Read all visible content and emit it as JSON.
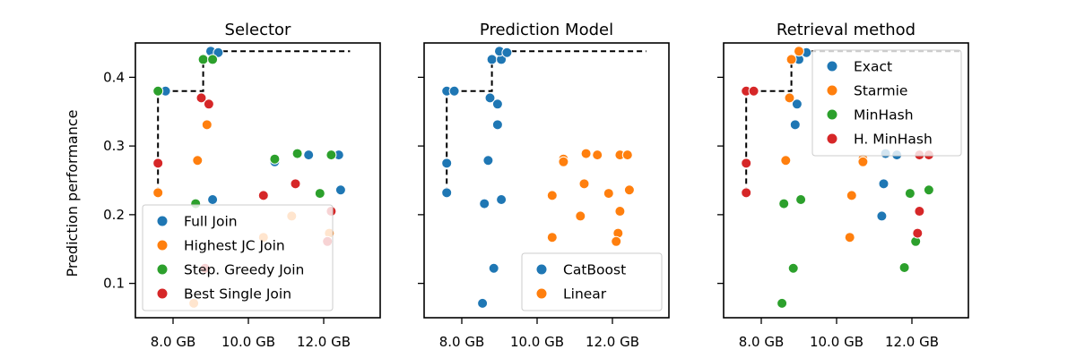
{
  "figure": {
    "ylabel": "Prediction performance",
    "xtick_labels": [
      "8.0 GB",
      "10.0 GB",
      "12.0 GB"
    ],
    "ytick_labels": [
      "0.1",
      "0.2",
      "0.3",
      "0.4"
    ]
  },
  "colors": {
    "Full Join": "#1f77b4",
    "Highest JC Join": "#ff7f0e",
    "Step. Greedy Join": "#2ca02c",
    "Best Single Join": "#d62728",
    "CatBoost": "#1f77b4",
    "Linear": "#ff7f0e",
    "Exact": "#1f77b4",
    "Starmie": "#ff7f0e",
    "MinHash": "#2ca02c",
    "H. MinHash": "#d62728",
    "pareto": "#000000"
  },
  "chart_data": [
    {
      "type": "scatter",
      "title": "Selector",
      "xlabel": "",
      "ylabel": "Prediction performance",
      "x_unit": "GB",
      "xlim": [
        7.0,
        13.5
      ],
      "ylim": [
        0.05,
        0.45
      ],
      "xticks": [
        8,
        10,
        12
      ],
      "yticks": [
        0.1,
        0.2,
        0.3,
        0.4
      ],
      "legend_loc": "lower-left",
      "grid": false,
      "series": [
        {
          "name": "Full Join",
          "points": [
            [
              7.8,
              0.38
            ],
            [
              9.0,
              0.438
            ],
            [
              9.2,
              0.436
            ],
            [
              10.7,
              0.277
            ],
            [
              9.05,
              0.222
            ],
            [
              11.6,
              0.287
            ],
            [
              12.4,
              0.287
            ],
            [
              12.45,
              0.236
            ]
          ]
        },
        {
          "name": "Highest JC Join",
          "points": [
            [
              7.6,
              0.232
            ],
            [
              8.65,
              0.279
            ],
            [
              8.9,
              0.331
            ],
            [
              10.4,
              0.167
            ],
            [
              11.15,
              0.198
            ],
            [
              12.15,
              0.173
            ],
            [
              8.55,
              0.071
            ]
          ]
        },
        {
          "name": "Step. Greedy Join",
          "points": [
            [
              7.6,
              0.38
            ],
            [
              8.8,
              0.426
            ],
            [
              9.05,
              0.426
            ],
            [
              11.3,
              0.289
            ],
            [
              10.7,
              0.281
            ],
            [
              12.2,
              0.287
            ],
            [
              11.9,
              0.231
            ],
            [
              8.6,
              0.216
            ]
          ]
        },
        {
          "name": "Best Single Join",
          "points": [
            [
              7.6,
              0.275
            ],
            [
              8.75,
              0.37
            ],
            [
              8.95,
              0.361
            ],
            [
              10.4,
              0.228
            ],
            [
              11.25,
              0.245
            ],
            [
              12.2,
              0.205
            ],
            [
              12.1,
              0.161
            ],
            [
              8.85,
              0.122
            ]
          ]
        }
      ],
      "pareto_front": [
        [
          7.6,
          0.232
        ],
        [
          7.6,
          0.38
        ],
        [
          8.8,
          0.38
        ],
        [
          8.8,
          0.426
        ],
        [
          9.0,
          0.426
        ],
        [
          9.0,
          0.438
        ],
        [
          12.7,
          0.438
        ]
      ]
    },
    {
      "type": "scatter",
      "title": "Prediction Model",
      "xlabel": "",
      "x_unit": "GB",
      "xlim": [
        7.0,
        13.5
      ],
      "ylim": [
        0.05,
        0.45
      ],
      "xticks": [
        8,
        10,
        12
      ],
      "yticks": [
        0.1,
        0.2,
        0.3,
        0.4
      ],
      "legend_loc": "lower-right",
      "grid": false,
      "series": [
        {
          "name": "CatBoost",
          "points": [
            [
              7.6,
              0.38
            ],
            [
              7.8,
              0.38
            ],
            [
              7.6,
              0.232
            ],
            [
              7.6,
              0.275
            ],
            [
              8.8,
              0.426
            ],
            [
              9.05,
              0.426
            ],
            [
              9.0,
              0.438
            ],
            [
              9.2,
              0.436
            ],
            [
              8.75,
              0.37
            ],
            [
              8.95,
              0.361
            ],
            [
              8.95,
              0.331
            ],
            [
              8.7,
              0.279
            ],
            [
              8.6,
              0.216
            ],
            [
              9.05,
              0.222
            ],
            [
              8.85,
              0.122
            ],
            [
              8.55,
              0.071
            ]
          ]
        },
        {
          "name": "Linear",
          "points": [
            [
              10.7,
              0.281
            ],
            [
              10.7,
              0.277
            ],
            [
              11.3,
              0.289
            ],
            [
              11.6,
              0.287
            ],
            [
              12.2,
              0.287
            ],
            [
              12.4,
              0.287
            ],
            [
              11.25,
              0.245
            ],
            [
              10.4,
              0.228
            ],
            [
              11.9,
              0.231
            ],
            [
              12.45,
              0.236
            ],
            [
              11.15,
              0.198
            ],
            [
              12.2,
              0.205
            ],
            [
              10.4,
              0.167
            ],
            [
              12.15,
              0.173
            ],
            [
              12.1,
              0.161
            ]
          ]
        }
      ],
      "pareto_front": [
        [
          7.6,
          0.232
        ],
        [
          7.6,
          0.38
        ],
        [
          8.8,
          0.38
        ],
        [
          8.8,
          0.426
        ],
        [
          9.0,
          0.426
        ],
        [
          9.0,
          0.438
        ],
        [
          12.9,
          0.438
        ]
      ]
    },
    {
      "type": "scatter",
      "title": "Retrieval method",
      "xlabel": "",
      "x_unit": "GB",
      "xlim": [
        7.0,
        13.5
      ],
      "ylim": [
        0.05,
        0.45
      ],
      "xticks": [
        8,
        10,
        12
      ],
      "yticks": [
        0.1,
        0.2,
        0.3,
        0.4
      ],
      "legend_loc": "upper-right",
      "grid": false,
      "series": [
        {
          "name": "Exact",
          "points": [
            [
              9.0,
              0.426
            ],
            [
              9.2,
              0.436
            ],
            [
              8.95,
              0.361
            ],
            [
              8.9,
              0.331
            ],
            [
              11.3,
              0.289
            ],
            [
              11.6,
              0.287
            ],
            [
              11.25,
              0.245
            ],
            [
              11.2,
              0.198
            ]
          ]
        },
        {
          "name": "Starmie",
          "points": [
            [
              8.8,
              0.426
            ],
            [
              9.0,
              0.438
            ],
            [
              8.75,
              0.37
            ],
            [
              8.65,
              0.279
            ],
            [
              10.7,
              0.281
            ],
            [
              10.7,
              0.277
            ],
            [
              10.4,
              0.228
            ],
            [
              10.35,
              0.167
            ]
          ]
        },
        {
          "name": "MinHash",
          "points": [
            [
              9.05,
              0.222
            ],
            [
              8.6,
              0.216
            ],
            [
              8.85,
              0.122
            ],
            [
              8.55,
              0.071
            ],
            [
              11.95,
              0.231
            ],
            [
              12.45,
              0.236
            ],
            [
              12.1,
              0.161
            ],
            [
              11.8,
              0.123
            ]
          ]
        },
        {
          "name": "H. MinHash",
          "points": [
            [
              7.6,
              0.38
            ],
            [
              7.8,
              0.38
            ],
            [
              7.6,
              0.275
            ],
            [
              7.6,
              0.232
            ],
            [
              12.2,
              0.287
            ],
            [
              12.45,
              0.287
            ],
            [
              12.2,
              0.205
            ],
            [
              12.15,
              0.173
            ]
          ]
        }
      ],
      "pareto_front": [
        [
          7.6,
          0.232
        ],
        [
          7.6,
          0.38
        ],
        [
          8.8,
          0.38
        ],
        [
          8.8,
          0.426
        ],
        [
          9.0,
          0.426
        ],
        [
          9.0,
          0.438
        ],
        [
          13.3,
          0.438
        ]
      ]
    }
  ]
}
